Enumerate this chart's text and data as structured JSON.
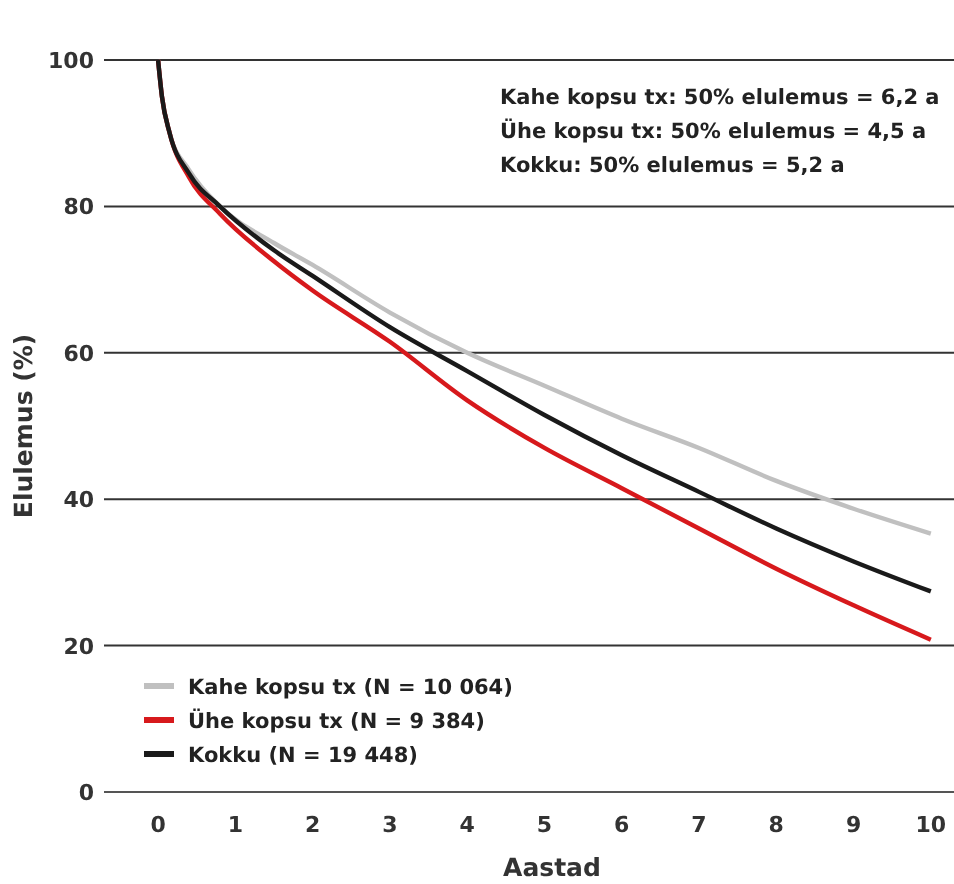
{
  "chart_data": {
    "type": "line",
    "xlabel": "Aastad",
    "ylabel": "Elulemus (%)",
    "x": [
      0,
      0.05,
      0.15,
      0.4,
      0.8,
      1.5,
      2,
      3,
      4,
      5,
      6,
      7,
      8,
      9,
      10
    ],
    "series": [
      {
        "name": "Kahe kopsu tx (N = 10 064)",
        "color": "#c0c0c0",
        "values": [
          100,
          95,
          90,
          85,
          80,
          75,
          72,
          65.5,
          60,
          55.5,
          51,
          47,
          42.5,
          38.7,
          35.3
        ]
      },
      {
        "name": "Ühe kopsu tx (N = 9 384)",
        "color": "#d7191c",
        "values": [
          100,
          95,
          90,
          84,
          79,
          72.5,
          68.5,
          61.5,
          53.5,
          47,
          41.5,
          36,
          30.5,
          25.5,
          20.8
        ]
      },
      {
        "name": "Kokku (N = 19 448)",
        "color": "#1a1a1a",
        "values": [
          100,
          95,
          90,
          84.5,
          80,
          74,
          70.5,
          63.5,
          57.5,
          51.5,
          46,
          41,
          36,
          31.5,
          27.4
        ]
      }
    ],
    "xlim": [
      -0.7,
      10.3
    ],
    "xticks": [
      0,
      1,
      2,
      3,
      4,
      5,
      6,
      7,
      8,
      9,
      10
    ],
    "ylim": [
      0,
      100
    ],
    "yticks": [
      0,
      20,
      40,
      60,
      80,
      100
    ],
    "grid": "y",
    "legend": "bottom left",
    "marker": "none",
    "line_style": "solid",
    "annotations": [
      "Kahe kopsu tx: 50% elulemus = 6,2 a",
      "Ühe kopsu tx: 50% elulemus = 4,5 a",
      "Kokku: 50% elulemus = 5,2 a"
    ]
  }
}
